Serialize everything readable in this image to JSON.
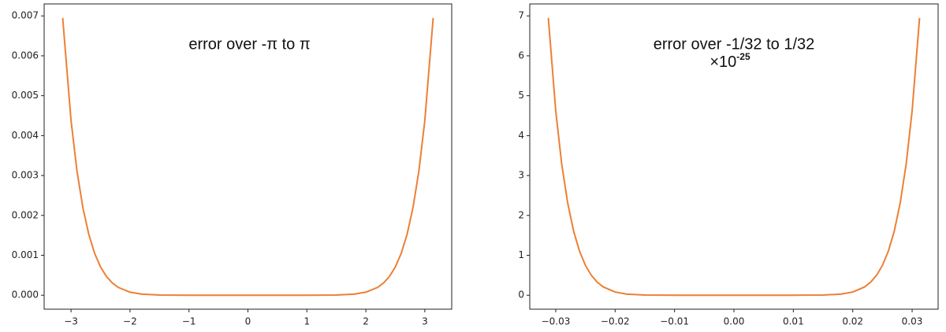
{
  "chart_data": [
    {
      "type": "line",
      "annotation": "error over -π to π",
      "x": [
        -3.1416,
        -3.0,
        -2.9,
        -2.8,
        -2.7,
        -2.6,
        -2.5,
        -2.4,
        -2.3,
        -2.2,
        -2.0,
        -1.8,
        -1.5,
        -1.0,
        0,
        1.0,
        1.5,
        1.8,
        2.0,
        2.2,
        2.3,
        2.4,
        2.5,
        2.6,
        2.7,
        2.8,
        2.9,
        3.0,
        3.1416
      ],
      "series": [
        {
          "color": "#ee7f35",
          "values": [
            0.00695,
            0.00438,
            0.00312,
            0.0022,
            0.00153,
            0.00105,
            0.00071,
            0.00047,
            0.000307,
            0.000197,
            7.6e-05,
            2.65e-05,
            4.3e-06,
            1e-07,
            0,
            1e-07,
            4.3e-06,
            2.65e-05,
            7.6e-05,
            0.000197,
            0.000307,
            0.00047,
            0.00071,
            0.00105,
            0.00153,
            0.0022,
            0.00312,
            0.00438,
            0.00695
          ]
        }
      ],
      "xlim": [
        -3.456,
        3.456
      ],
      "xticks": [
        {
          "value": -3,
          "label": "−3"
        },
        {
          "value": -2,
          "label": "−2"
        },
        {
          "value": -1,
          "label": "−1"
        },
        0,
        1,
        2,
        3
      ],
      "ylim": [
        -0.00035,
        0.0073
      ],
      "yticks": [
        {
          "value": 0,
          "label": "0.000"
        },
        0.001,
        0.002,
        0.003,
        0.004,
        0.005,
        0.006,
        0.007
      ]
    },
    {
      "type": "line",
      "annotation": "error over -1/32 to 1/32",
      "offset_label": {
        "base": "×10",
        "exponent": "-25"
      },
      "x": [
        -0.03125,
        -0.03,
        -0.029,
        -0.028,
        -0.027,
        -0.026,
        -0.025,
        -0.024,
        -0.023,
        -0.022,
        -0.02,
        -0.018,
        -0.015,
        -0.01,
        0,
        0.01,
        0.015,
        0.018,
        0.02,
        0.022,
        0.023,
        0.024,
        0.025,
        0.026,
        0.027,
        0.028,
        0.029,
        0.03,
        0.03125
      ],
      "series": [
        {
          "color": "#ee7f35",
          "values": [
            6.95,
            4.62,
            3.29,
            2.32,
            1.61,
            1.105,
            0.747,
            0.496,
            0.324,
            0.208,
            0.08,
            0.028,
            0.0045,
            0.0001,
            0,
            0.0001,
            0.0045,
            0.028,
            0.08,
            0.208,
            0.324,
            0.496,
            0.747,
            1.105,
            1.61,
            2.32,
            3.29,
            4.62,
            6.95
          ]
        }
      ],
      "xlim": [
        -0.034375,
        0.034375
      ],
      "xticks": [
        {
          "value": -0.03,
          "label": "−0.03"
        },
        {
          "value": -0.02,
          "label": "−0.02"
        },
        {
          "value": -0.01,
          "label": "−0.01"
        },
        {
          "value": 0,
          "label": "0.00"
        },
        0.01,
        0.02,
        0.03
      ],
      "ylim": [
        -0.35,
        7.3
      ],
      "yticks": [
        0,
        1,
        2,
        3,
        4,
        5,
        6,
        7
      ]
    }
  ]
}
